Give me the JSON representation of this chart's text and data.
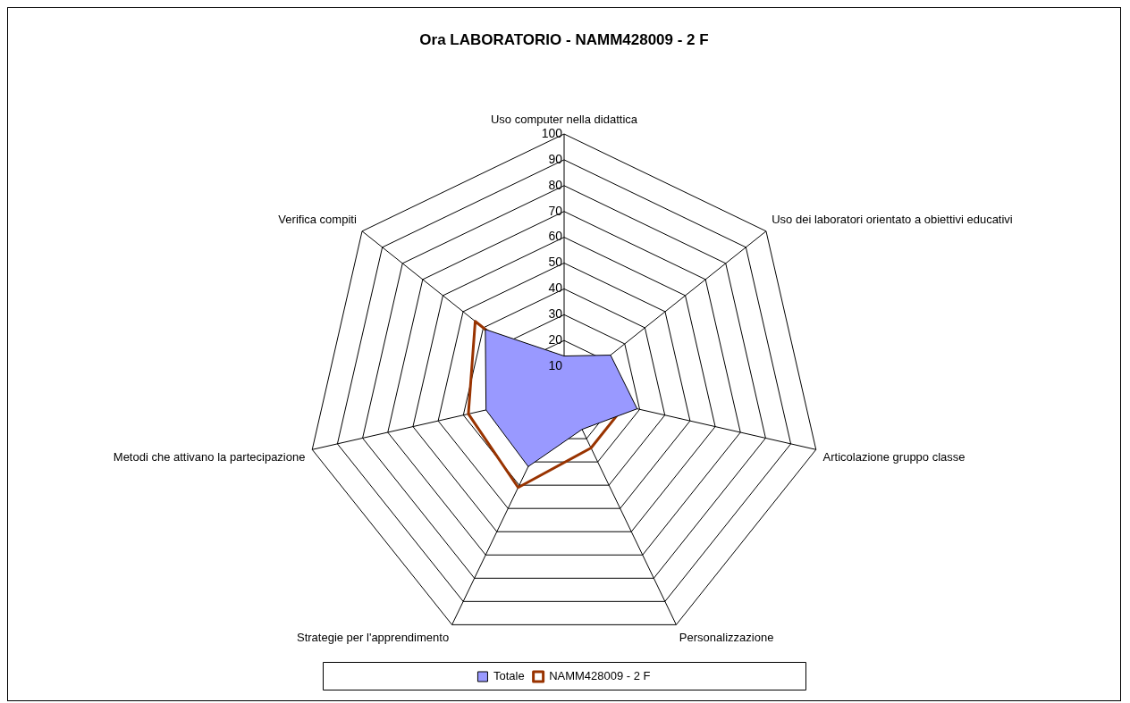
{
  "chart_data": {
    "type": "radar",
    "title": "Ora LABORATORIO - NAMM428009 - 2 F",
    "categories": [
      "Uso computer nella didattica",
      "Uso dei laboratori orientato a obiettivi educativi",
      "Articolazione gruppo classe",
      "Personalizzazione",
      "Strategie per l'apprendimento",
      "Metodi che attivano la partecipazione",
      "Verifica compiti"
    ],
    "series": [
      {
        "name": "Totale",
        "color": "#9999ff",
        "values": [
          14,
          23,
          29,
          16,
          32,
          31,
          39
        ]
      },
      {
        "name": "NAMM428009 - 2 F",
        "color": "#993300",
        "values": [
          0,
          12,
          24,
          24,
          41,
          38,
          44
        ]
      }
    ],
    "ylim": [
      0,
      100
    ],
    "yticks": [
      10,
      20,
      30,
      40,
      50,
      60,
      70,
      80,
      90,
      100
    ],
    "grid": true,
    "legend": "bottom",
    "marker": "none"
  }
}
